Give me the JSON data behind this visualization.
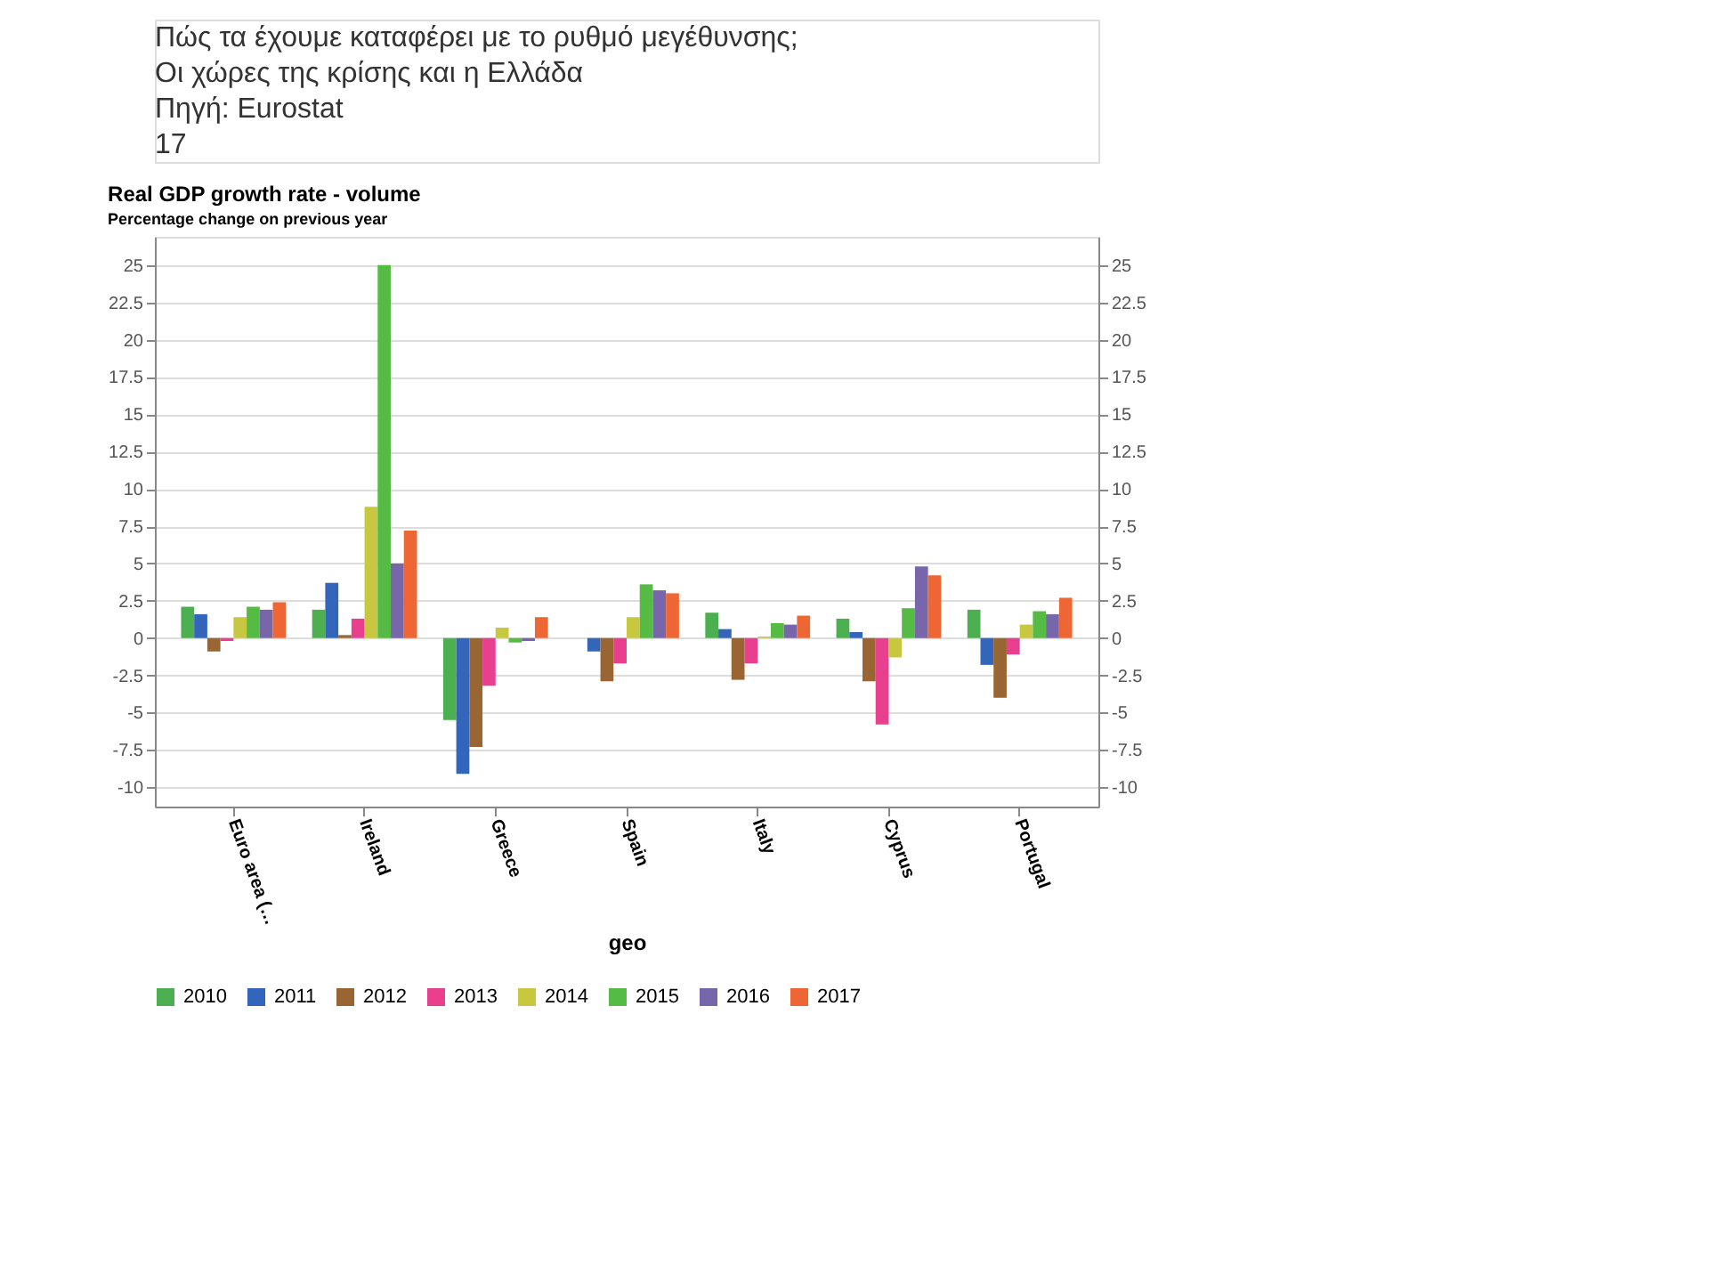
{
  "chart_data": {
    "type": "bar",
    "title": "Real GDP growth rate - volume",
    "subtitle": "Percentage change on previous year",
    "xlabel": "geo",
    "annotations": [
      "Πώς τα έχουμε καταφέρει με το ρυθμό μεγέθυνσης;",
      "Οι χώρες της κρίσης και η Ελλάδα",
      "Πηγή: Eurostat",
      "17"
    ],
    "categories": [
      "Euro area (…",
      "Ireland",
      "Greece",
      "Spain",
      "Italy",
      "Cyprus",
      "Portugal"
    ],
    "series": [
      {
        "name": "2010",
        "color": "#4cb050",
        "values": [
          2.1,
          1.9,
          -5.5,
          0.0,
          1.7,
          1.3,
          1.9
        ]
      },
      {
        "name": "2011",
        "color": "#3366bb",
        "values": [
          1.6,
          3.7,
          -9.1,
          -0.9,
          0.6,
          0.4,
          -1.8
        ]
      },
      {
        "name": "2012",
        "color": "#996633",
        "values": [
          -0.9,
          0.2,
          -7.3,
          -2.9,
          -2.8,
          -2.9,
          -4.0
        ]
      },
      {
        "name": "2013",
        "color": "#e8408f",
        "values": [
          -0.2,
          1.3,
          -3.2,
          -1.7,
          -1.7,
          -5.8,
          -1.1
        ]
      },
      {
        "name": "2014",
        "color": "#c8c840",
        "values": [
          1.4,
          8.8,
          0.7,
          1.4,
          0.1,
          -1.3,
          0.9
        ]
      },
      {
        "name": "2015",
        "color": "#55bb44",
        "values": [
          2.1,
          25.0,
          -0.3,
          3.6,
          1.0,
          2.0,
          1.8
        ]
      },
      {
        "name": "2016",
        "color": "#7766aa",
        "values": [
          1.9,
          5.0,
          -0.2,
          3.2,
          0.9,
          4.8,
          1.6
        ]
      },
      {
        "name": "2017",
        "color": "#ee6633",
        "values": [
          2.4,
          7.2,
          1.4,
          3.0,
          1.5,
          4.2,
          2.7
        ]
      }
    ],
    "ylim": [
      -11.3,
      26.9
    ],
    "yticks": [
      -10,
      -7.5,
      -5,
      -2.5,
      0,
      2.5,
      5,
      7.5,
      10,
      12.5,
      15,
      17.5,
      20,
      22.5,
      25
    ],
    "y2lim": [
      -11.3,
      26.9
    ],
    "y2ticks": [
      -10,
      -7.5,
      -5,
      -2.5,
      0,
      2.5,
      5,
      7.5,
      10,
      12.5,
      15,
      17.5,
      20,
      22.5,
      25
    ],
    "grid": "y",
    "legend": "bottom"
  }
}
